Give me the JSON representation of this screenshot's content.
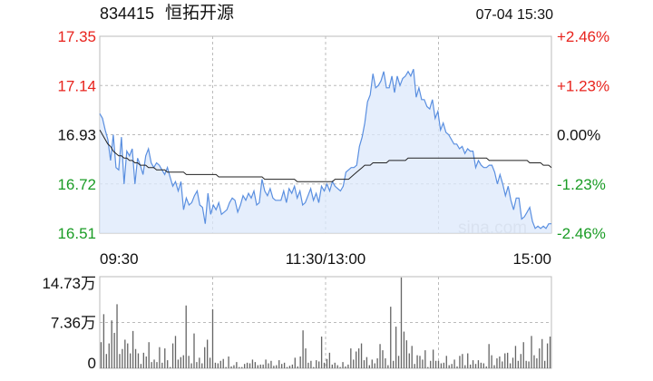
{
  "header": {
    "stock_code": "834415",
    "stock_name": "恒拓开源",
    "datetime": "07-04 15:30"
  },
  "watermark": "sina.com",
  "colors": {
    "up": "#e8231d",
    "down": "#1a9c25",
    "neutral": "#111111",
    "price_line": "#5a8fe0",
    "price_fill": "#dce8fb",
    "avg_line": "#222222",
    "volume_bar": "#666666",
    "grid": "#bbbbbb"
  },
  "chart_data": [
    {
      "type": "line",
      "subtype": "intraday-price",
      "prev_close": 16.93,
      "ylim": [
        16.51,
        17.35
      ],
      "y_ticks_left": [
        "17.35",
        "17.14",
        "16.93",
        "16.72",
        "16.51"
      ],
      "y_ticks_right": [
        "+2.46%",
        "+1.23%",
        "0.00%",
        "-1.23%",
        "-2.46%"
      ],
      "x_ticks": [
        "09:30",
        "11:30/13:00",
        "15:00"
      ],
      "grid": true,
      "series": [
        {
          "role": "price",
          "values": [
            17.02,
            17.0,
            16.95,
            16.91,
            16.82,
            16.93,
            16.79,
            16.78,
            16.92,
            16.72,
            16.86,
            16.84,
            16.87,
            16.72,
            16.83,
            16.8,
            16.76,
            16.84,
            16.87,
            16.81,
            16.79,
            16.81,
            16.8,
            16.78,
            16.76,
            16.79,
            16.75,
            16.71,
            16.73,
            16.69,
            16.73,
            16.61,
            16.66,
            16.63,
            16.64,
            16.67,
            16.69,
            16.63,
            16.62,
            16.55,
            16.68,
            16.59,
            16.63,
            16.61,
            16.64,
            16.59,
            16.6,
            16.61,
            16.64,
            16.66,
            16.65,
            16.6,
            16.63,
            16.67,
            16.65,
            16.68,
            16.66,
            16.69,
            16.63,
            16.64,
            16.74,
            16.69,
            16.67,
            16.7,
            16.66,
            16.65,
            16.65,
            16.65,
            16.69,
            16.64,
            16.7,
            16.68,
            16.71,
            16.66,
            16.69,
            16.63,
            16.64,
            16.67,
            16.7,
            16.65,
            16.68,
            16.64,
            16.71,
            16.69,
            16.72,
            16.69,
            16.73,
            16.71,
            16.7,
            16.69,
            16.71,
            16.77,
            16.78,
            16.79,
            16.79,
            16.8,
            16.88,
            16.92,
            16.98,
            17.07,
            17.1,
            17.19,
            17.13,
            17.14,
            17.16,
            17.2,
            17.13,
            17.13,
            17.18,
            17.11,
            17.18,
            17.14,
            17.17,
            17.18,
            17.2,
            17.18,
            17.21,
            17.09,
            17.13,
            17.08,
            17.08,
            17.05,
            17.04,
            17.08,
            17.0,
            17.03,
            16.95,
            16.98,
            16.94,
            16.93,
            16.91,
            16.89,
            16.89,
            16.87,
            16.88,
            16.85,
            16.87,
            16.86,
            16.86,
            16.79,
            16.82,
            16.8,
            16.79,
            16.79,
            16.8,
            16.8,
            16.77,
            16.72,
            16.76,
            16.72,
            16.67,
            16.71,
            16.65,
            16.61,
            16.66,
            16.66,
            16.57,
            16.58,
            16.6,
            16.62,
            16.56,
            16.53,
            16.54,
            16.53,
            16.54,
            16.53,
            16.55,
            16.55
          ]
        },
        {
          "role": "average",
          "values": [
            16.95,
            16.93,
            16.91,
            16.89,
            16.88,
            16.86,
            16.85,
            16.84,
            16.84,
            16.83,
            16.83,
            16.82,
            16.82,
            16.81,
            16.81,
            16.8,
            16.8,
            16.8,
            16.79,
            16.79,
            16.79,
            16.78,
            16.78,
            16.78,
            16.78,
            16.77,
            16.77,
            16.77,
            16.77,
            16.77,
            16.77,
            16.77,
            16.76,
            16.76,
            16.76,
            16.76,
            16.76,
            16.76,
            16.76,
            16.76,
            16.76,
            16.76,
            16.76,
            16.76,
            16.75,
            16.75,
            16.75,
            16.75,
            16.75,
            16.75,
            16.75,
            16.75,
            16.75,
            16.75,
            16.75,
            16.75,
            16.75,
            16.75,
            16.75,
            16.75,
            16.75,
            16.74,
            16.74,
            16.74,
            16.74,
            16.74,
            16.74,
            16.74,
            16.74,
            16.74,
            16.74,
            16.74,
            16.74,
            16.73,
            16.73,
            16.73,
            16.73,
            16.73,
            16.73,
            16.73,
            16.73,
            16.73,
            16.73,
            16.73,
            16.73,
            16.73,
            16.73,
            16.74,
            16.74,
            16.74,
            16.74,
            16.74,
            16.74,
            16.75,
            16.76,
            16.77,
            16.78,
            16.79,
            16.8,
            16.8,
            16.8,
            16.81,
            16.81,
            16.81,
            16.81,
            16.81,
            16.81,
            16.82,
            16.82,
            16.82,
            16.82,
            16.82,
            16.82,
            16.82,
            16.83,
            16.83,
            16.83,
            16.83,
            16.83,
            16.83,
            16.83,
            16.83,
            16.83,
            16.83,
            16.83,
            16.83,
            16.83,
            16.83,
            16.83,
            16.83,
            16.83,
            16.83,
            16.83,
            16.83,
            16.83,
            16.83,
            16.83,
            16.83,
            16.83,
            16.83,
            16.83,
            16.83,
            16.83,
            16.83,
            16.82,
            16.82,
            16.82,
            16.82,
            16.82,
            16.82,
            16.82,
            16.82,
            16.82,
            16.82,
            16.82,
            16.82,
            16.82,
            16.82,
            16.82,
            16.81,
            16.81,
            16.81,
            16.81,
            16.81,
            16.8,
            16.8,
            16.8,
            16.79
          ]
        }
      ]
    },
    {
      "type": "bar",
      "subtype": "volume",
      "ylim": [
        0,
        14.73
      ],
      "y_ticks": [
        "14.73万",
        "7.36万",
        "0"
      ],
      "values": [
        4.2,
        8.7,
        2.3,
        4.0,
        7.7,
        5.7,
        10.3,
        2.3,
        3.1,
        4.6,
        4.0,
        2.4,
        6.0,
        3.1,
        2.4,
        0.7,
        2.5,
        1.9,
        4.2,
        1.0,
        1.4,
        1.0,
        3.4,
        0.9,
        3.2,
        1.3,
        0.2,
        4.0,
        5.2,
        1.4,
        1.8,
        2.1,
        10.1,
        2.0,
        0.8,
        5.6,
        1.0,
        1.7,
        0.8,
        3.4,
        4.6,
        1.7,
        9.5,
        0.9,
        0.8,
        1.2,
        1.5,
        0.2,
        1.9,
        0.3,
        0.5,
        1.0,
        0.2,
        0.2,
        0.7,
        0.9,
        0.8,
        1.4,
        1.0,
        0.5,
        0.6,
        0.6,
        1.4,
        0.8,
        1.2,
        0.4,
        0.5,
        1.3,
        0.7,
        0.9,
        0.2,
        0.4,
        0.6,
        1.7,
        0.3,
        1.9,
        6.1,
        3.2,
        0.9,
        1.2,
        0.2,
        1.3,
        1.1,
        5.1,
        0.9,
        1.5,
        2.5,
        0.6,
        0.9,
        0.5,
        0.2,
        1.0,
        0.3,
        0.6,
        3.2,
        1.4,
        2.7,
        3.2,
        4.0,
        1.3,
        1.8,
        0.5,
        1.4,
        0.8,
        1.6,
        3.9,
        2.9,
        1.6,
        0.5,
        9.9,
        1.2,
        6.7,
        2.0,
        14.6,
        5.9,
        4.5,
        2.4,
        3.6,
        0.7,
        2.1,
        2.0,
        1.4,
        2.9,
        0.2,
        1.2,
        3.0,
        1.2,
        1.2,
        0.8,
        0.9,
        2.0,
        0.5,
        0.7,
        1.4,
        0.3,
        2.0,
        2.3,
        0.5,
        2.4,
        0.6,
        1.3,
        0.7,
        1.3,
        0.9,
        0.8,
        0.3,
        3.9,
        2.1,
        0.5,
        1.6,
        1.9,
        1.1,
        2.4,
        2.5,
        0.8,
        1.7,
        3.6,
        1.2,
        2.3,
        4.2,
        1.2,
        1.1,
        5.2,
        2.1,
        1.6,
        3.2,
        4.7,
        1.2,
        4.0,
        5.1
      ]
    }
  ]
}
